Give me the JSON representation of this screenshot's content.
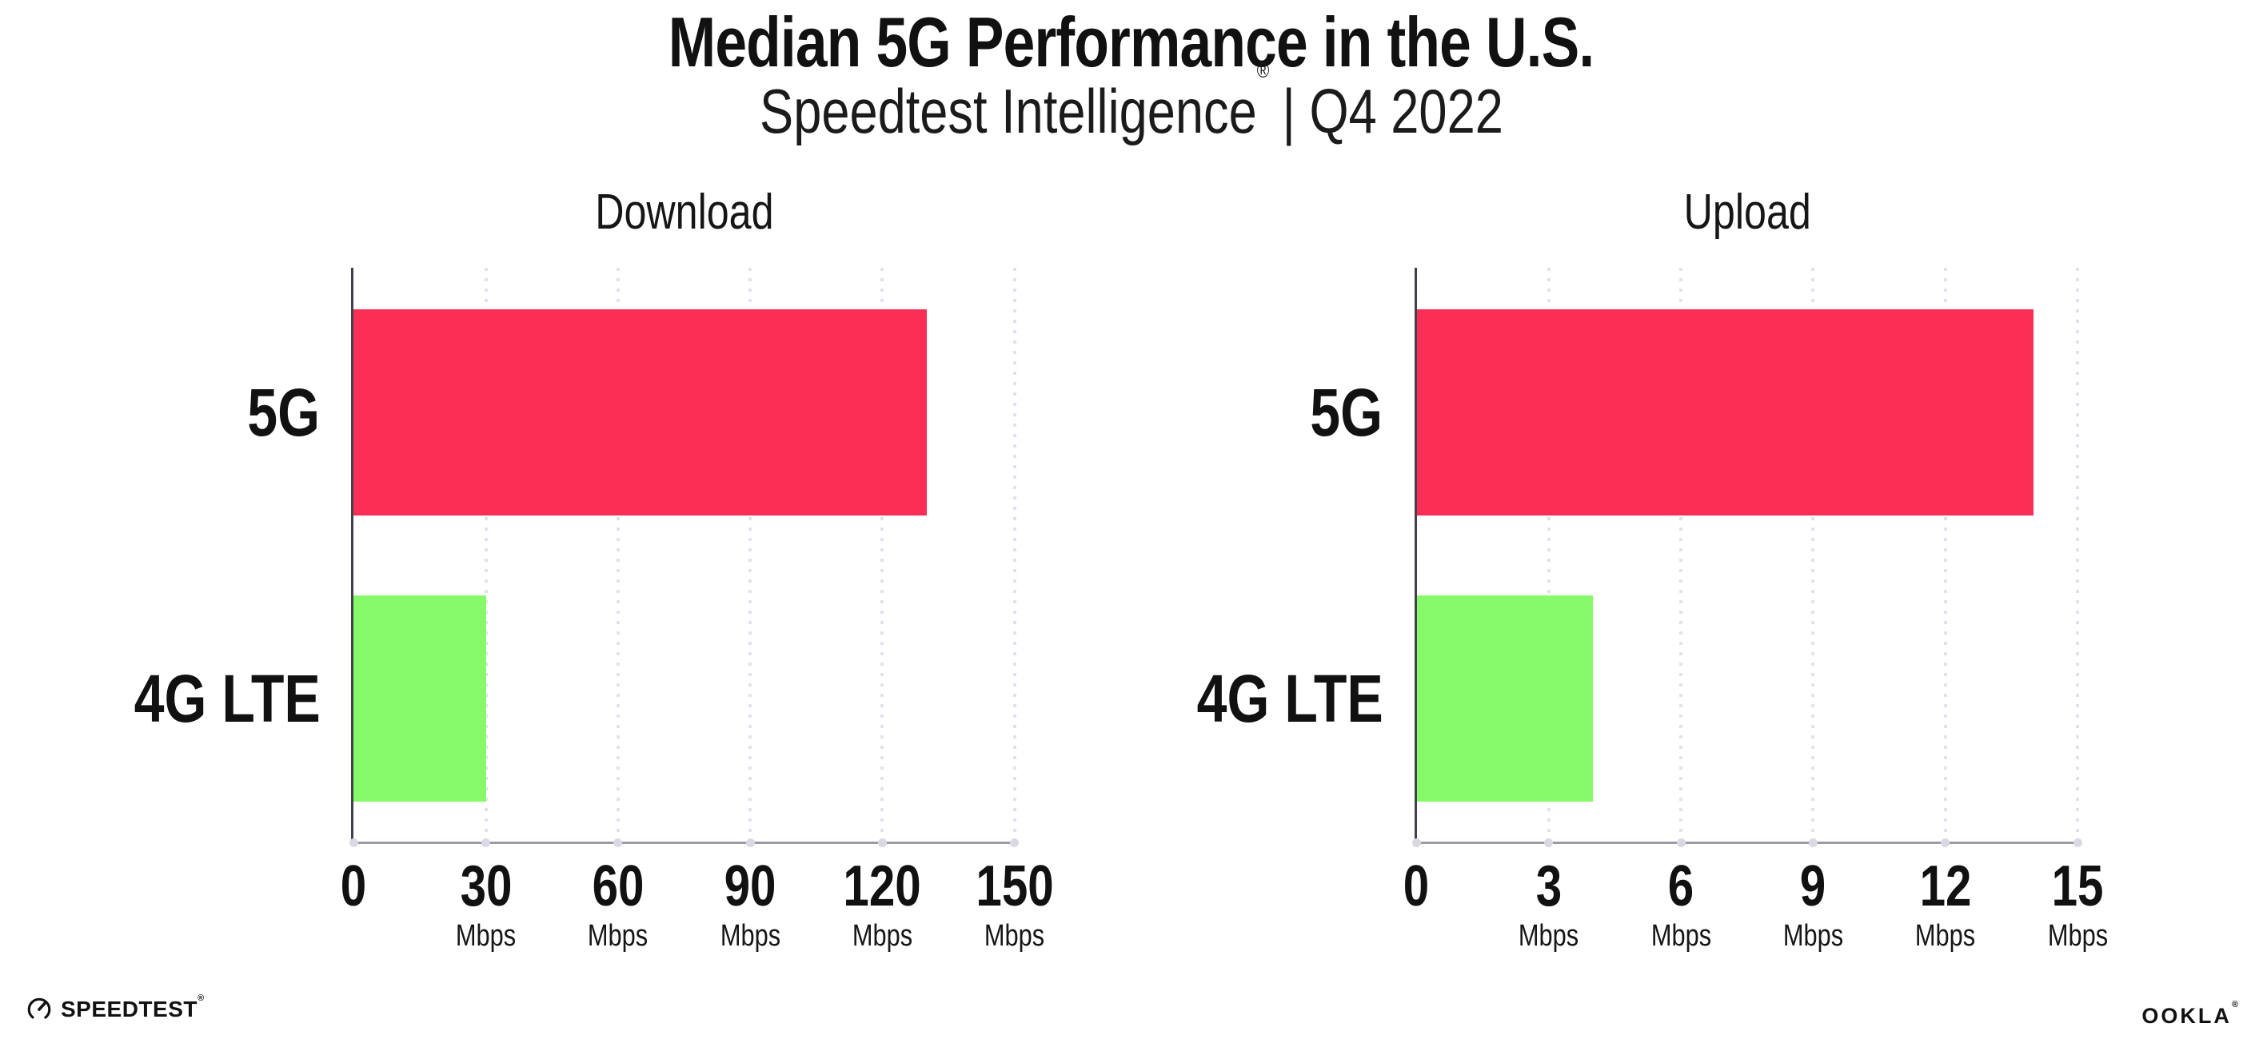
{
  "header": {
    "title": "Median 5G Performance in the U.S.",
    "subtitle_brand": "Speedtest Intelligence",
    "subtitle_mark": "®",
    "subtitle_rest": "| Q4 2022"
  },
  "colors": {
    "bar_5g": "#fc2e56",
    "bar_4g": "#86fa68",
    "gridline": "#e2e2ec",
    "y_axis": "#3f4349",
    "x_axis": "#9b9ba3",
    "tick_dot": "#d9d9e3",
    "text": "#111111"
  },
  "chart_data": [
    {
      "type": "bar",
      "orientation": "horizontal",
      "title": "Download",
      "categories": [
        "5G",
        "4G LTE"
      ],
      "values": [
        130,
        30
      ],
      "unit": "Mbps",
      "xlim": [
        0,
        150
      ],
      "xticks": [
        0,
        30,
        60,
        90,
        120,
        150
      ],
      "bar_colors": [
        "#fc2e56",
        "#86fa68"
      ],
      "grid": "dotted-vertical",
      "legend": "none"
    },
    {
      "type": "bar",
      "orientation": "horizontal",
      "title": "Upload",
      "categories": [
        "5G",
        "4G LTE"
      ],
      "values": [
        14,
        4
      ],
      "unit": "Mbps",
      "xlim": [
        0,
        15
      ],
      "xticks": [
        0,
        3,
        6,
        9,
        12,
        15
      ],
      "bar_colors": [
        "#fc2e56",
        "#86fa68"
      ],
      "grid": "dotted-vertical",
      "legend": "none"
    }
  ],
  "footer": {
    "speedtest_label": "SPEEDTEST",
    "speedtest_mark": "®",
    "ookla_label": "OOKLA",
    "ookla_mark": "®"
  }
}
